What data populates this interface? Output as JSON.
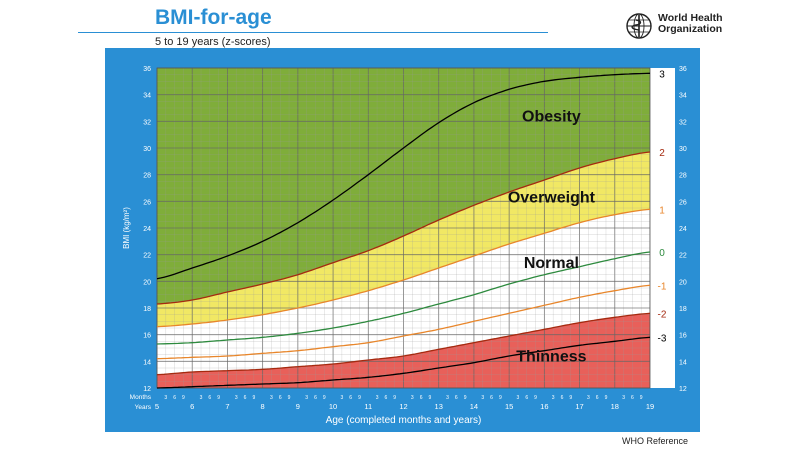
{
  "header": {
    "title": "BMI-for-age",
    "subtitle": "5 to 19 years (z-scores)",
    "logo_text_line1": "World Health",
    "logo_text_line2": "Organization",
    "logo_icon": "who-emblem-icon"
  },
  "footer": {
    "reference": "WHO Reference"
  },
  "colors": {
    "frame": "#2a8fd4",
    "obesity": "#7fad3a",
    "overweight": "#f1e864",
    "normal": "#ffffff",
    "thinness": "#e8605a"
  },
  "chart_data": {
    "type": "line",
    "xlabel": "Age (completed months and years)",
    "ylabel": "BMI (kg/m²)",
    "xlim": [
      5,
      19
    ],
    "ylim": [
      12,
      36
    ],
    "x_ticks": [
      5,
      6,
      7,
      8,
      9,
      10,
      11,
      12,
      13,
      14,
      15,
      16,
      17,
      18,
      19
    ],
    "y_ticks": [
      12,
      14,
      16,
      18,
      20,
      22,
      24,
      26,
      28,
      30,
      32,
      34,
      36
    ],
    "months_label": "Months",
    "years_label": "Years",
    "month_ticks": [
      "3",
      "6",
      "9"
    ],
    "x": [
      5,
      6,
      7,
      8,
      9,
      10,
      11,
      12,
      13,
      14,
      15,
      16,
      17,
      18,
      19
    ],
    "series": [
      {
        "name": "3",
        "color": "#000000",
        "values": [
          20.2,
          21.0,
          21.9,
          23.0,
          24.4,
          26.1,
          28.0,
          30.0,
          31.9,
          33.4,
          34.4,
          35.0,
          35.3,
          35.5,
          35.6
        ]
      },
      {
        "name": "2",
        "color": "#a52a10",
        "values": [
          18.3,
          18.6,
          19.2,
          19.8,
          20.5,
          21.4,
          22.3,
          23.4,
          24.6,
          25.7,
          26.7,
          27.6,
          28.5,
          29.2,
          29.7
        ]
      },
      {
        "name": "1",
        "color": "#e8862b",
        "values": [
          16.6,
          16.8,
          17.1,
          17.5,
          18.0,
          18.6,
          19.3,
          20.1,
          21.0,
          21.9,
          22.8,
          23.6,
          24.4,
          25.0,
          25.4
        ]
      },
      {
        "name": "0",
        "color": "#2d8a3e",
        "values": [
          15.3,
          15.4,
          15.6,
          15.8,
          16.1,
          16.5,
          17.0,
          17.6,
          18.3,
          19.0,
          19.8,
          20.5,
          21.1,
          21.7,
          22.2
        ]
      },
      {
        "name": "-1",
        "color": "#e8862b",
        "values": [
          14.2,
          14.3,
          14.4,
          14.6,
          14.8,
          15.1,
          15.4,
          15.9,
          16.4,
          17.0,
          17.6,
          18.2,
          18.8,
          19.3,
          19.7
        ]
      },
      {
        "name": "-2",
        "color": "#a52a10",
        "values": [
          13.0,
          13.2,
          13.3,
          13.4,
          13.6,
          13.8,
          14.1,
          14.4,
          14.9,
          15.4,
          15.9,
          16.4,
          16.9,
          17.3,
          17.6
        ]
      },
      {
        "name": "-3",
        "color": "#000000",
        "values": [
          12.0,
          12.1,
          12.2,
          12.3,
          12.4,
          12.6,
          12.8,
          13.1,
          13.5,
          13.9,
          14.4,
          14.8,
          15.2,
          15.5,
          15.8
        ]
      }
    ],
    "zones": [
      {
        "label": "Obesity",
        "upper": "top",
        "lower": "2",
        "color": "#7fad3a",
        "label_x": 16.2,
        "label_y": 32.0
      },
      {
        "label": "Overweight",
        "upper": "2",
        "lower": "1",
        "color": "#f1e864",
        "label_x": 16.2,
        "label_y": 25.9
      },
      {
        "label": "Normal",
        "upper": "1",
        "lower": "-2",
        "color": "#ffffff",
        "label_x": 16.2,
        "label_y": 21.0
      },
      {
        "label": "Thinness",
        "upper": "-2",
        "lower": "bottom",
        "color": "#e8605a",
        "label_x": 16.2,
        "label_y": 14.0
      }
    ],
    "grid": true
  }
}
